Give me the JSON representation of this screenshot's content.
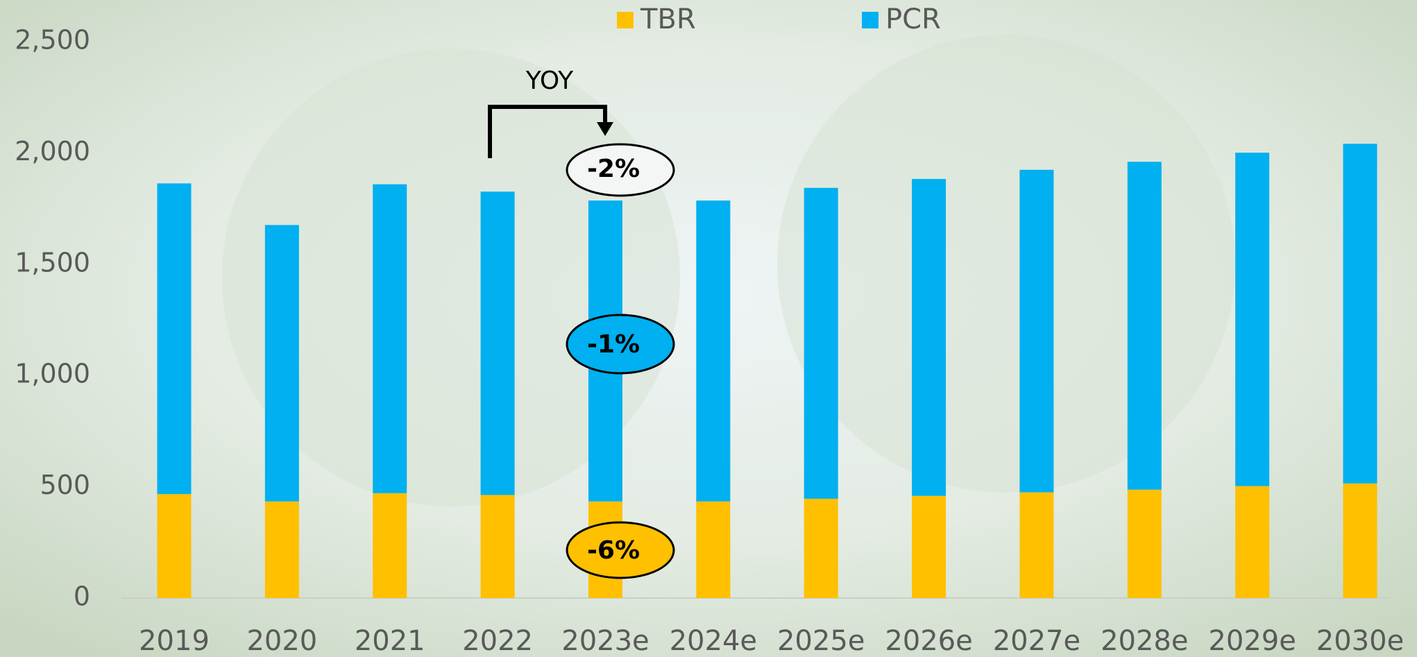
{
  "chart_data": {
    "type": "stacked_bar",
    "categories": [
      "2019",
      "2020",
      "2021",
      "2022",
      "2023e",
      "2024e",
      "2025e",
      "2026e",
      "2027e",
      "2028e",
      "2029e",
      "2030e"
    ],
    "series": [
      {
        "name": "TBR",
        "color": "#ffc000",
        "values": [
          467,
          434,
          471,
          463,
          434,
          434,
          446,
          459,
          475,
          487,
          503,
          515
        ]
      },
      {
        "name": "PCR",
        "color": "#00b0f0",
        "values": [
          1396,
          1242,
          1388,
          1363,
          1352,
          1352,
          1397,
          1424,
          1449,
          1473,
          1498,
          1526
        ]
      }
    ],
    "ylim": [
      0,
      2500
    ],
    "yticks": [
      0,
      500,
      {
        "value": 1000,
        "label": "1,000"
      },
      {
        "value": 1500,
        "label": "1,500"
      },
      {
        "value": 2000,
        "label": "2,000"
      },
      {
        "value": 2500,
        "label": "2,500"
      }
    ],
    "grid": false,
    "legend": "top",
    "annotations": [
      "YOY",
      "-2%",
      "-1%",
      "-6%"
    ]
  }
}
